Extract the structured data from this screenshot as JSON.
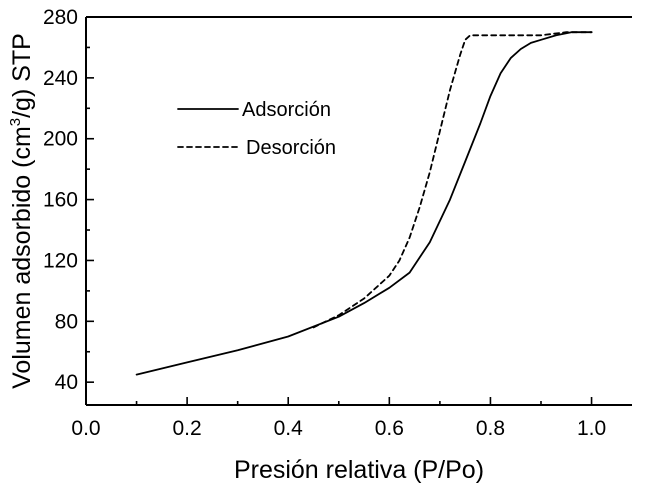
{
  "chart_data": {
    "type": "line",
    "title": "",
    "xlabel": "Presión relativa (P/Po)",
    "ylabel_main": "Volumen adsorbido (cm",
    "ylabel_sup": "3",
    "ylabel_tail": "/g) STP",
    "xlim": [
      0.0,
      1.08
    ],
    "ylim": [
      25,
      280
    ],
    "xticks": [
      0.0,
      0.2,
      0.4,
      0.6,
      0.8,
      1.0
    ],
    "xtick_labels": [
      "0.0",
      "0.2",
      "0.4",
      "0.6",
      "0.8",
      "1.0"
    ],
    "yticks": [
      40,
      80,
      120,
      160,
      200,
      240,
      280
    ],
    "ytick_labels": [
      "40",
      "80",
      "120",
      "160",
      "200",
      "240",
      "280"
    ],
    "legend_position": "upper-left",
    "series": [
      {
        "name": "Adsorción",
        "style": "solid",
        "x": [
          0.1,
          0.2,
          0.3,
          0.4,
          0.5,
          0.55,
          0.6,
          0.64,
          0.68,
          0.72,
          0.75,
          0.78,
          0.8,
          0.82,
          0.84,
          0.86,
          0.88,
          0.9,
          0.93,
          0.96,
          1.0
        ],
        "y": [
          45,
          53,
          61,
          70,
          83,
          92,
          102,
          112,
          132,
          160,
          185,
          210,
          228,
          243,
          253,
          259,
          263,
          265,
          268,
          270,
          270
        ]
      },
      {
        "name": "Desorción",
        "style": "dashed",
        "x": [
          0.45,
          0.5,
          0.55,
          0.6,
          0.62,
          0.64,
          0.66,
          0.68,
          0.7,
          0.72,
          0.74,
          0.75,
          0.76,
          0.78,
          0.8,
          0.85,
          0.9,
          0.95,
          1.0
        ],
        "y": [
          76,
          84,
          95,
          110,
          120,
          135,
          155,
          178,
          205,
          232,
          255,
          265,
          268,
          268,
          268,
          268,
          268,
          270,
          270
        ]
      }
    ]
  }
}
